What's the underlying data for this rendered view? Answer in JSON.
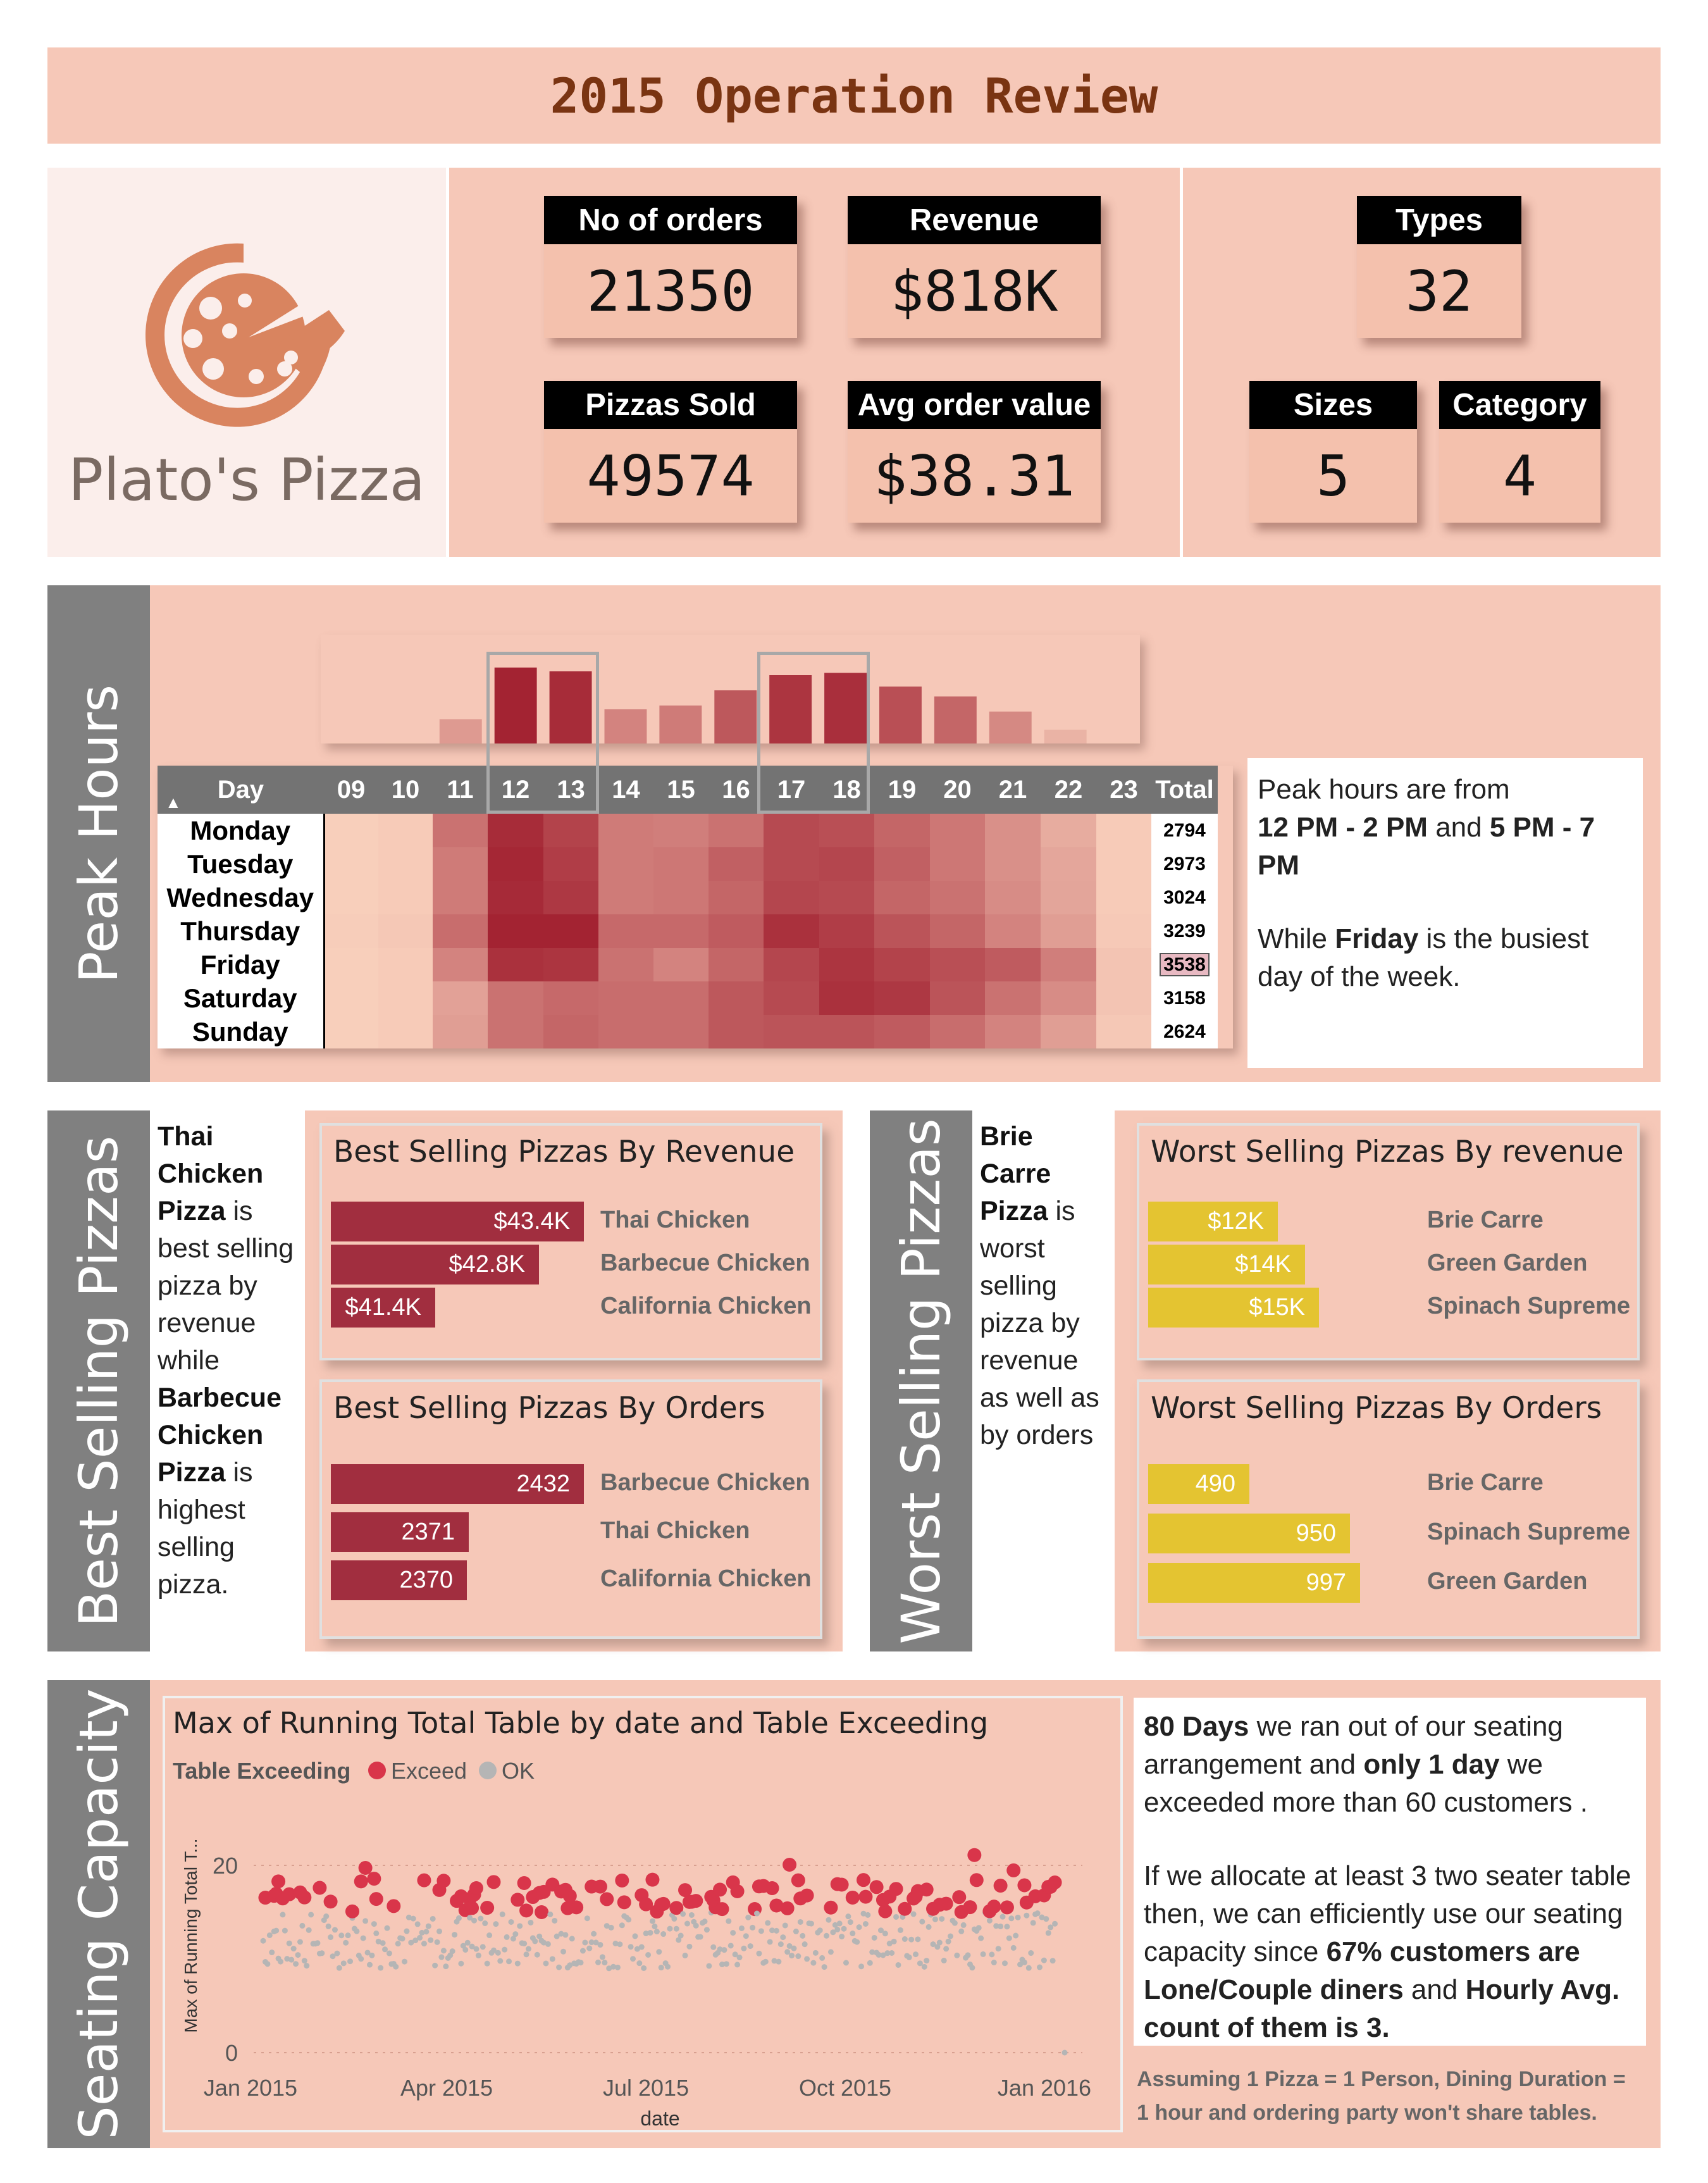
{
  "header": {
    "title": "2015 Operation Review"
  },
  "brand": {
    "name": "Plato's Pizza",
    "logo_color": "#d9845f"
  },
  "kpis": {
    "orders": {
      "label": "No of orders",
      "value": "21350"
    },
    "revenue": {
      "label": "Revenue",
      "value": "$818K"
    },
    "pizzas_sold": {
      "label": "Pizzas Sold",
      "value": "49574"
    },
    "avg_order": {
      "label": "Avg order value",
      "value": "$38.31"
    },
    "types": {
      "label": "Types",
      "value": "32"
    },
    "sizes": {
      "label": "Sizes",
      "value": "5"
    },
    "category": {
      "label": "Category",
      "value": "4"
    }
  },
  "sections": {
    "peak": "Peak Hours",
    "best": "Best Selling Pizzas",
    "worst": "Worst Selling Pizzas",
    "seating": "Seating Capacity"
  },
  "peak_hours": {
    "day_header": "Day",
    "total_header": "Total",
    "hours": [
      "09",
      "10",
      "11",
      "12",
      "13",
      "14",
      "15",
      "16",
      "17",
      "18",
      "19",
      "20",
      "21",
      "22",
      "23"
    ],
    "days": [
      "Monday",
      "Tuesday",
      "Wednesday",
      "Thursday",
      "Friday",
      "Saturday",
      "Sunday"
    ],
    "totals": [
      "2794",
      "2973",
      "3024",
      "3239",
      "3538",
      "3158",
      "2624"
    ],
    "hourly_intensity": [
      0.0,
      0.01,
      0.32,
      1.0,
      0.95,
      0.45,
      0.5,
      0.7,
      0.9,
      0.93,
      0.75,
      0.62,
      0.42,
      0.18,
      0.03
    ],
    "heat": [
      [
        0.02,
        0.04,
        0.55,
        0.95,
        0.82,
        0.5,
        0.48,
        0.55,
        0.78,
        0.75,
        0.62,
        0.52,
        0.38,
        0.22,
        0.04
      ],
      [
        0.02,
        0.04,
        0.5,
        0.98,
        0.85,
        0.5,
        0.52,
        0.65,
        0.78,
        0.8,
        0.65,
        0.52,
        0.38,
        0.25,
        0.04
      ],
      [
        0.02,
        0.04,
        0.5,
        0.96,
        0.88,
        0.5,
        0.52,
        0.62,
        0.8,
        0.78,
        0.62,
        0.55,
        0.4,
        0.26,
        0.04
      ],
      [
        0.03,
        0.06,
        0.58,
        1.0,
        1.0,
        0.6,
        0.6,
        0.68,
        0.92,
        0.85,
        0.72,
        0.62,
        0.45,
        0.3,
        0.05
      ],
      [
        0.02,
        0.04,
        0.45,
        0.92,
        0.9,
        0.55,
        0.45,
        0.62,
        0.8,
        0.9,
        0.82,
        0.75,
        0.68,
        0.48,
        0.08
      ],
      [
        0.02,
        0.04,
        0.28,
        0.55,
        0.6,
        0.58,
        0.58,
        0.7,
        0.78,
        0.92,
        0.88,
        0.72,
        0.55,
        0.4,
        0.08
      ],
      [
        0.02,
        0.04,
        0.3,
        0.55,
        0.62,
        0.58,
        0.58,
        0.7,
        0.72,
        0.72,
        0.68,
        0.58,
        0.45,
        0.3,
        0.06
      ]
    ],
    "note_line1": "Peak hours are from",
    "note_bold1": "12 PM - 2 PM",
    "note_and": " and ",
    "note_bold2": "5 PM - 7 PM",
    "note_while": "While ",
    "note_friday": "Friday",
    "note_rest": " is the busiest day of the week."
  },
  "best": {
    "desc": {
      "b1": "Thai Chicken Pizza",
      "t1": " is best selling pizza by revenue while ",
      "b2": "Barbecue Chicken Pizza",
      "t2": " is highest selling pizza."
    },
    "by_revenue": {
      "title": "Best Selling Pizzas By Revenue",
      "items": [
        {
          "name": "Thai Chicken",
          "label": "$43.4K",
          "value": 43.4
        },
        {
          "name": "Barbecue Chicken",
          "label": "$42.8K",
          "value": 42.8
        },
        {
          "name": "California Chicken",
          "label": "$41.4K",
          "value": 41.4
        }
      ]
    },
    "by_orders": {
      "title": "Best Selling Pizzas By Orders",
      "items": [
        {
          "name": "Barbecue Chicken",
          "label": "2432",
          "value": 2432
        },
        {
          "name": "Thai Chicken",
          "label": "2371",
          "value": 2371
        },
        {
          "name": "California Chicken",
          "label": "2370",
          "value": 2370
        }
      ]
    }
  },
  "worst": {
    "desc": {
      "b1": "Brie Carre Pizza",
      "t1": " is worst selling pizza by revenue as well as by orders"
    },
    "by_revenue": {
      "title": "Worst Selling Pizzas By revenue",
      "items": [
        {
          "name": "Brie Carre",
          "label": "$12K",
          "value": 12
        },
        {
          "name": "Green Garden",
          "label": "$14K",
          "value": 14
        },
        {
          "name": "Spinach Supreme",
          "label": "$15K",
          "value": 15
        }
      ]
    },
    "by_orders": {
      "title": "Worst Selling Pizzas By Orders",
      "items": [
        {
          "name": "Brie Carre",
          "label": "490",
          "value": 490
        },
        {
          "name": "Spinach Supreme",
          "label": "950",
          "value": 950
        },
        {
          "name": "Green Garden",
          "label": "997",
          "value": 997
        }
      ]
    }
  },
  "seating": {
    "chart_title": "Max of Running Total Table by date and Table Exceeding",
    "legend_title": "Table Exceeding",
    "note": {
      "b1": "80 Days",
      "t1": " we ran out of our seating arrangement and ",
      "b2": "only 1 day",
      "t2": " we exceeded more than 60 customers .",
      "t3": "If we allocate at least 3 two seater table then, we can efficiently use our seating capacity since ",
      "b3": "67% customers are Lone/Couple diners",
      "t4": " and ",
      "b4": "Hourly Avg. count of them is 3."
    },
    "assumption": "Assuming 1 Pizza = 1 Person, Dining Duration = 1 hour and ordering party won't share tables."
  },
  "colors": {
    "bg_pink": "#f6c8b8",
    "red": "#a12e3f",
    "yellow": "#e4c431",
    "exceed": "#d9354a",
    "ok": "#b5b5b5"
  },
  "chart_data": [
    {
      "type": "bar",
      "title": "Best Selling Pizzas By Revenue",
      "categories": [
        "Thai Chicken",
        "Barbecue Chicken",
        "California Chicken"
      ],
      "values": [
        43.4,
        42.8,
        41.4
      ]
    },
    {
      "type": "bar",
      "title": "Best Selling Pizzas By Orders",
      "categories": [
        "Barbecue Chicken",
        "Thai Chicken",
        "California Chicken"
      ],
      "values": [
        2432,
        2371,
        2370
      ]
    },
    {
      "type": "bar",
      "title": "Worst Selling Pizzas By revenue",
      "categories": [
        "Brie Carre",
        "Green Garden",
        "Spinach Supreme"
      ],
      "values": [
        12,
        14,
        15
      ]
    },
    {
      "type": "bar",
      "title": "Worst Selling Pizzas By Orders",
      "categories": [
        "Brie Carre",
        "Spinach Supreme",
        "Green Garden"
      ],
      "values": [
        490,
        950,
        997
      ]
    },
    {
      "type": "heatmap",
      "x": [
        "09",
        "10",
        "11",
        "12",
        "13",
        "14",
        "15",
        "16",
        "17",
        "18",
        "19",
        "20",
        "21",
        "22",
        "23"
      ],
      "y": [
        "Monday",
        "Tuesday",
        "Wednesday",
        "Thursday",
        "Friday",
        "Saturday",
        "Sunday"
      ],
      "totals": [
        2794,
        2973,
        3024,
        3239,
        3538,
        3158,
        2624
      ]
    },
    {
      "type": "scatter",
      "title": "Max of Running Total Table by date and Table Exceeding",
      "xlabel": "date",
      "ylabel": "Max of Running Total T...",
      "x_ticks": [
        "Jan 2015",
        "Apr 2015",
        "Jul 2015",
        "Oct 2015",
        "Jan 2016"
      ],
      "y_ticks": [
        "0",
        "20"
      ],
      "ylim": [
        0,
        25
      ],
      "legend": "top-left",
      "series": [
        {
          "name": "Exceed",
          "color": "#d9354a",
          "days": 80,
          "approx_y_range": [
            16,
            24
          ]
        },
        {
          "name": "OK",
          "color": "#b5b5b5",
          "approx_y_range": [
            10,
            15
          ]
        }
      ]
    }
  ]
}
